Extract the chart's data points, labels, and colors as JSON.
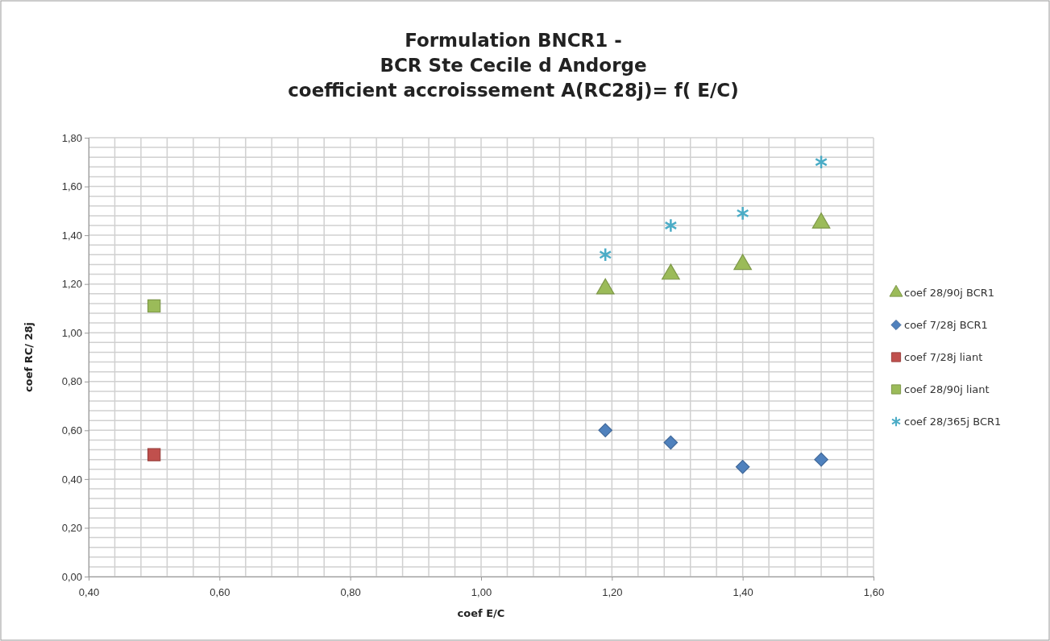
{
  "chart_data": {
    "type": "scatter",
    "title": "Formulation BNCR1 -\nBCR Ste Cecile d Andorge\ncoefficient accroissement A(RC28j)= f( E/C)",
    "xlabel": "coef E/C",
    "ylabel": "coef RC/ 28j",
    "xlim": [
      0.4,
      1.6
    ],
    "ylim": [
      0,
      1.8
    ],
    "xticks": [
      {
        "value": 0.4,
        "label": "0,40"
      },
      {
        "value": 0.44,
        "label": null
      },
      {
        "value": 0.48,
        "label": null
      },
      {
        "value": 0.52,
        "label": null
      },
      {
        "value": 0.56,
        "label": null
      },
      {
        "value": 0.6,
        "label": "0,60"
      },
      {
        "value": 0.64,
        "label": null
      },
      {
        "value": 0.68,
        "label": null
      },
      {
        "value": 0.72,
        "label": null
      },
      {
        "value": 0.76,
        "label": null
      },
      {
        "value": 0.8,
        "label": "0,80"
      },
      {
        "value": 0.84,
        "label": null
      },
      {
        "value": 0.88,
        "label": null
      },
      {
        "value": 0.92,
        "label": null
      },
      {
        "value": 0.96,
        "label": null
      },
      {
        "value": 1.0,
        "label": "1,00"
      },
      {
        "value": 1.04,
        "label": null
      },
      {
        "value": 1.08,
        "label": null
      },
      {
        "value": 1.12,
        "label": null
      },
      {
        "value": 1.16,
        "label": null
      },
      {
        "value": 1.2,
        "label": "1,20"
      },
      {
        "value": 1.24,
        "label": null
      },
      {
        "value": 1.28,
        "label": null
      },
      {
        "value": 1.32,
        "label": null
      },
      {
        "value": 1.36,
        "label": null
      },
      {
        "value": 1.4,
        "label": "1,40"
      },
      {
        "value": 1.44,
        "label": null
      },
      {
        "value": 1.48,
        "label": null
      },
      {
        "value": 1.52,
        "label": null
      },
      {
        "value": 1.56,
        "label": null
      },
      {
        "value": 1.6,
        "label": "1,60"
      }
    ],
    "yticks": [
      {
        "value": 0,
        "label": "0,00"
      },
      {
        "value": 0.04,
        "label": null
      },
      {
        "value": 0.08,
        "label": null
      },
      {
        "value": 0.12,
        "label": null
      },
      {
        "value": 0.16,
        "label": null
      },
      {
        "value": 0.2,
        "label": "0,20"
      },
      {
        "value": 0.24,
        "label": null
      },
      {
        "value": 0.28,
        "label": null
      },
      {
        "value": 0.32,
        "label": null
      },
      {
        "value": 0.36,
        "label": null
      },
      {
        "value": 0.4,
        "label": "0,40"
      },
      {
        "value": 0.44,
        "label": null
      },
      {
        "value": 0.48,
        "label": null
      },
      {
        "value": 0.52,
        "label": null
      },
      {
        "value": 0.56,
        "label": null
      },
      {
        "value": 0.6,
        "label": "0,60"
      },
      {
        "value": 0.64,
        "label": null
      },
      {
        "value": 0.68,
        "label": null
      },
      {
        "value": 0.72,
        "label": null
      },
      {
        "value": 0.76,
        "label": null
      },
      {
        "value": 0.8,
        "label": "0,80"
      },
      {
        "value": 0.84,
        "label": null
      },
      {
        "value": 0.88,
        "label": null
      },
      {
        "value": 0.92,
        "label": null
      },
      {
        "value": 0.96,
        "label": null
      },
      {
        "value": 1.0,
        "label": "1,00"
      },
      {
        "value": 1.04,
        "label": null
      },
      {
        "value": 1.08,
        "label": null
      },
      {
        "value": 1.12,
        "label": null
      },
      {
        "value": 1.16,
        "label": null
      },
      {
        "value": 1.2,
        "label": "1,20"
      },
      {
        "value": 1.24,
        "label": null
      },
      {
        "value": 1.28,
        "label": null
      },
      {
        "value": 1.32,
        "label": null
      },
      {
        "value": 1.36,
        "label": null
      },
      {
        "value": 1.4,
        "label": "1,40"
      },
      {
        "value": 1.44,
        "label": null
      },
      {
        "value": 1.48,
        "label": null
      },
      {
        "value": 1.52,
        "label": null
      },
      {
        "value": 1.56,
        "label": null
      },
      {
        "value": 1.6,
        "label": "1,60"
      },
      {
        "value": 1.64,
        "label": null
      },
      {
        "value": 1.68,
        "label": null
      },
      {
        "value": 1.72,
        "label": null
      },
      {
        "value": 1.76,
        "label": null
      },
      {
        "value": 1.8,
        "label": "1,80"
      }
    ],
    "grid": true,
    "legend": "right",
    "series": [
      {
        "name": "coef 28/90j BCR1",
        "color": "#9bbb59",
        "marker": "triangle",
        "x": [
          1.19,
          1.29,
          1.4,
          1.52
        ],
        "values": [
          1.18,
          1.24,
          1.28,
          1.45
        ]
      },
      {
        "name": "coef 7/28j BCR1",
        "color": "#4f81bd",
        "marker": "diamond",
        "x": [
          1.19,
          1.29,
          1.4,
          1.52
        ],
        "values": [
          0.6,
          0.55,
          0.45,
          0.48
        ]
      },
      {
        "name": "coef 7/28j liant",
        "color": "#c0504d",
        "marker": "square",
        "x": [
          0.5
        ],
        "values": [
          0.5
        ]
      },
      {
        "name": "coef 28/90j liant",
        "color": "#9bbb59",
        "marker": "square",
        "x": [
          0.5
        ],
        "values": [
          1.11
        ]
      },
      {
        "name": "coef 28/365j BCR1",
        "color": "#4bacc6",
        "marker": "cross",
        "x": [
          1.19,
          1.29,
          1.4,
          1.52
        ],
        "values": [
          1.32,
          1.44,
          1.49,
          1.7
        ]
      }
    ]
  }
}
